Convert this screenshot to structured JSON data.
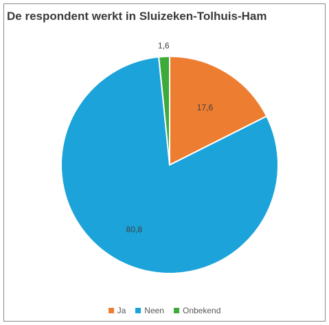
{
  "chart_data": {
    "type": "pie",
    "title": "De respondent werkt in Sluizeken-Tolhuis-Ham",
    "categories": [
      "Ja",
      "Neen",
      "Onbekend"
    ],
    "values": [
      17.6,
      80.8,
      1.6
    ],
    "value_labels": [
      "17,6",
      "80,8",
      "1,6"
    ],
    "colors": [
      "#ED7D31",
      "#1BA3DA",
      "#3DAA3A"
    ],
    "start_angle_deg": 0,
    "direction": "clockwise",
    "legend_position": "bottom"
  }
}
